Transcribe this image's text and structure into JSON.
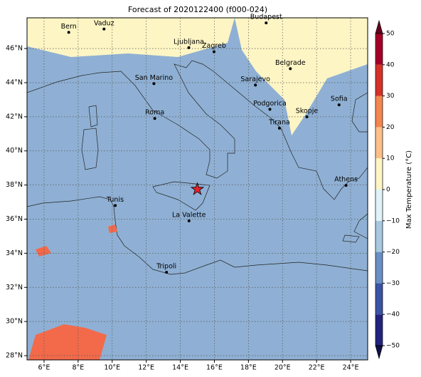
{
  "map": {
    "title": "Forecast of 2020122400 (f000-024)",
    "lon_range": [
      5,
      25
    ],
    "lat_range": [
      27.75,
      47.8
    ],
    "lon_ticks": [
      {
        "value": 6,
        "label": "6°E"
      },
      {
        "value": 8,
        "label": "8°E"
      },
      {
        "value": 10,
        "label": "10°E"
      },
      {
        "value": 12,
        "label": "12°E"
      },
      {
        "value": 14,
        "label": "14°E"
      },
      {
        "value": 16,
        "label": "16°E"
      },
      {
        "value": 18,
        "label": "18°E"
      },
      {
        "value": 20,
        "label": "20°E"
      },
      {
        "value": 22,
        "label": "22°E"
      },
      {
        "value": 24,
        "label": "24°E"
      }
    ],
    "lat_ticks": [
      {
        "value": 28,
        "label": "28°N"
      },
      {
        "value": 30,
        "label": "30°N"
      },
      {
        "value": 32,
        "label": "32°N"
      },
      {
        "value": 34,
        "label": "34°N"
      },
      {
        "value": 36,
        "label": "36°N"
      },
      {
        "value": 38,
        "label": "38°N"
      },
      {
        "value": 40,
        "label": "40°N"
      },
      {
        "value": 42,
        "label": "42°N"
      },
      {
        "value": 44,
        "label": "44°N"
      },
      {
        "value": 46,
        "label": "46°N"
      }
    ],
    "cities": [
      {
        "name": "Bern",
        "lon": 7.45,
        "lat": 46.95
      },
      {
        "name": "Vaduz",
        "lon": 9.52,
        "lat": 47.14
      },
      {
        "name": "Budapest",
        "lon": 19.04,
        "lat": 47.5
      },
      {
        "name": "Ljubljana",
        "lon": 14.5,
        "lat": 46.05
      },
      {
        "name": "Zagreb",
        "lon": 15.98,
        "lat": 45.81
      },
      {
        "name": "Belgrade",
        "lon": 20.46,
        "lat": 44.82
      },
      {
        "name": "San Marino",
        "lon": 12.45,
        "lat": 43.94
      },
      {
        "name": "Sarajevo",
        "lon": 18.41,
        "lat": 43.86
      },
      {
        "name": "Sofia",
        "lon": 23.32,
        "lat": 42.7
      },
      {
        "name": "Podgorica",
        "lon": 19.26,
        "lat": 42.44
      },
      {
        "name": "Skopje",
        "lon": 21.43,
        "lat": 42.0
      },
      {
        "name": "Roma",
        "lon": 12.5,
        "lat": 41.9
      },
      {
        "name": "Tirana",
        "lon": 19.82,
        "lat": 41.33
      },
      {
        "name": "Athens",
        "lon": 23.73,
        "lat": 37.98
      },
      {
        "name": "Tunis",
        "lon": 10.18,
        "lat": 36.8
      },
      {
        "name": "La Valette",
        "lon": 14.51,
        "lat": 35.9
      },
      {
        "name": "Tripoli",
        "lon": 13.19,
        "lat": 32.89
      }
    ],
    "marker": {
      "lon": 15.0,
      "lat": 37.75
    },
    "colorbar": {
      "label": "Max Temperature (°C)",
      "lim": [
        -50,
        50
      ],
      "ticks": [
        {
          "value": -50,
          "label": "−50"
        },
        {
          "value": -40,
          "label": "−40"
        },
        {
          "value": -30,
          "label": "−30"
        },
        {
          "value": -20,
          "label": "−20"
        },
        {
          "value": -10,
          "label": "−10"
        },
        0,
        10,
        20,
        30,
        40,
        50
      ]
    }
  }
}
